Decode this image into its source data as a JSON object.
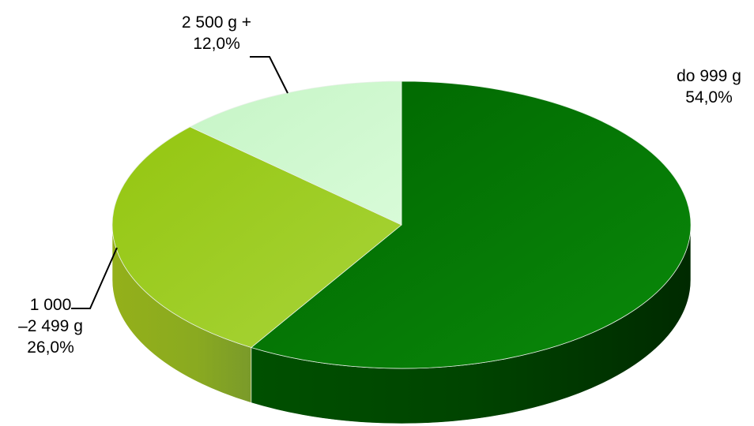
{
  "chart_data": {
    "type": "pie",
    "title": "",
    "slices": [
      {
        "label_lines": [
          "do 999 g",
          "54,0%"
        ],
        "category": "do 999 g",
        "percent_text": "54,0%",
        "value": 54.0,
        "color": "#0a7a0a"
      },
      {
        "label_lines": [
          "1 000",
          "–2 499 g",
          "26,0%"
        ],
        "category": "1 000 –2 499 g",
        "percent_text": "26,0%",
        "value": 26.0,
        "color": "#9ccc1e"
      },
      {
        "label_lines": [
          "2 500 g +",
          "12,0%"
        ],
        "category": "2 500 g +",
        "percent_text": "12,0%",
        "value": 12.0,
        "color": "#ccf7cc"
      }
    ],
    "legend": "none",
    "style": "3d-pie",
    "colors": {
      "slice_dark_green": "#0a7a0a",
      "slice_lime": "#9ccc1e",
      "slice_pale_green": "#ccf7cc"
    }
  }
}
